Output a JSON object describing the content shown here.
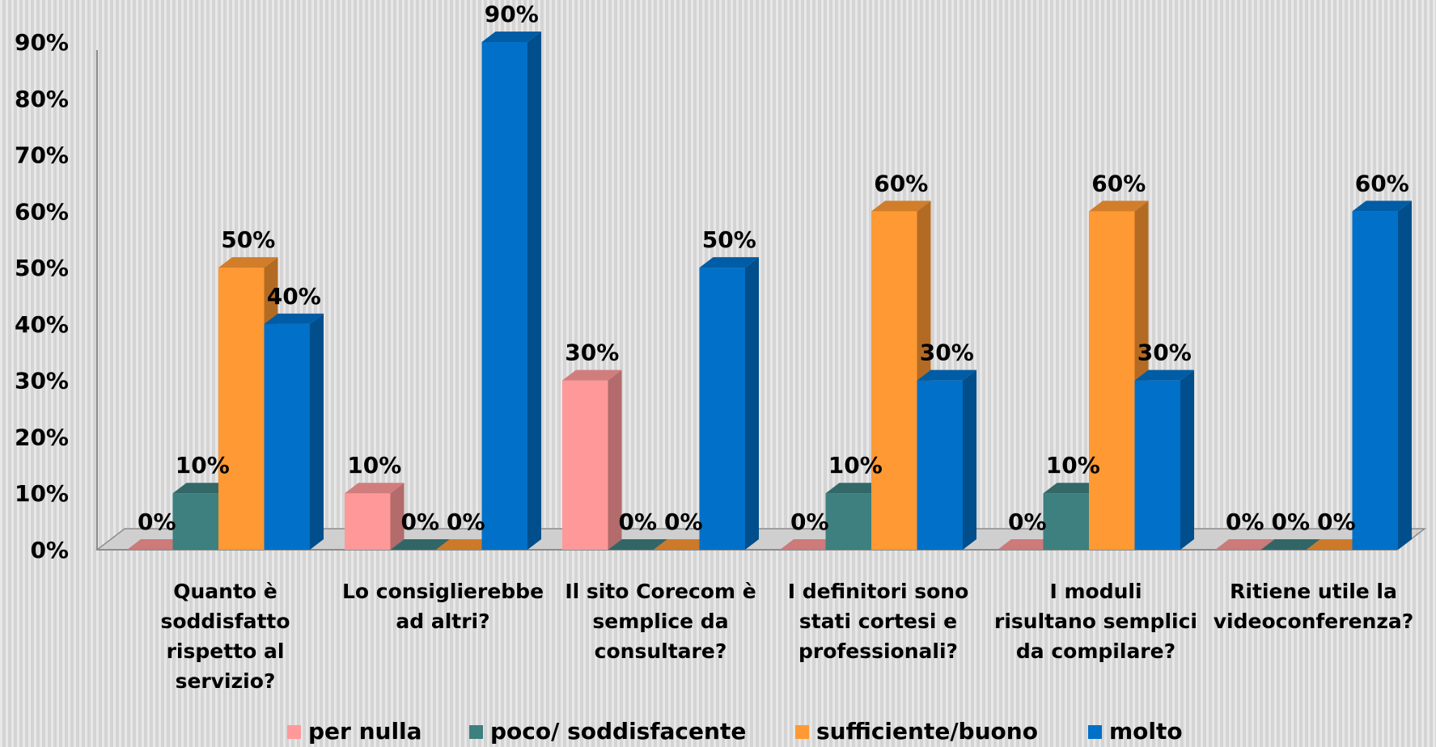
{
  "chart_data": {
    "type": "bar",
    "title": "",
    "xlabel": "",
    "ylabel": "",
    "ylim": [
      0,
      90
    ],
    "y_ticks": [
      "0%",
      "10%",
      "20%",
      "30%",
      "40%",
      "50%",
      "60%",
      "70%",
      "80%",
      "90%"
    ],
    "grid": false,
    "legend_position": "bottom",
    "categories": [
      "Quanto è soddisfatto rispetto al servizio?",
      "Lo consiglierebbe ad altri?",
      "Il sito Corecom è semplice da consultare?",
      "I definitori sono stati cortesi e professionali?",
      "I moduli risultano semplici da compilare?",
      "Ritiene utile la videoconferenza?"
    ],
    "category_lines": [
      [
        "Quanto è",
        "soddisfatto",
        "rispetto al",
        "servizio?"
      ],
      [
        "Lo consiglierebbe",
        "ad altri?"
      ],
      [
        "Il sito Corecom è",
        "semplice da",
        "consultare?"
      ],
      [
        "I definitori sono",
        "stati cortesi e",
        "professionali?"
      ],
      [
        "I moduli",
        "risultano semplici",
        "da compilare?"
      ],
      [
        "Ritiene utile la",
        "videoconferenza?"
      ]
    ],
    "series": [
      {
        "name": "per nulla",
        "color": "#ff9999",
        "values": [
          0,
          10,
          30,
          0,
          0,
          0
        ],
        "labels": [
          "0%",
          "10%",
          "30%",
          "0%",
          "0%",
          "0%"
        ]
      },
      {
        "name": "poco/ soddisfacente",
        "color": "#3e7f7f",
        "values": [
          10,
          0,
          0,
          10,
          10,
          0
        ],
        "labels": [
          "10%",
          "0%",
          "0%",
          "10%",
          "10%",
          "0%"
        ]
      },
      {
        "name": "sufficiente/buono",
        "color": "#ff9933",
        "values": [
          50,
          0,
          0,
          60,
          60,
          0
        ],
        "labels": [
          "50%",
          "0%",
          "0%",
          "60%",
          "60%",
          "0%"
        ]
      },
      {
        "name": "molto",
        "color": "#0070c8",
        "values": [
          40,
          90,
          50,
          30,
          30,
          60
        ],
        "labels": [
          "40%",
          "90%",
          "50%",
          "30%",
          "30%",
          "60%"
        ]
      }
    ]
  }
}
